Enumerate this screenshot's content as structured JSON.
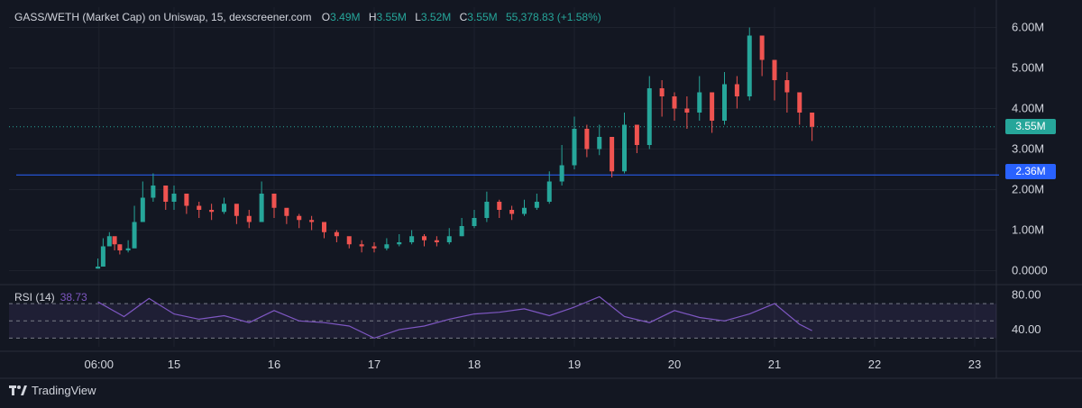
{
  "header": {
    "symbol": "GASS/WETH (Market Cap) on Uniswap, 15, dexscreener.com",
    "o_label": "O",
    "o_value": "3.49M",
    "h_label": "H",
    "h_value": "3.55M",
    "l_label": "L",
    "l_value": "3.52M",
    "c_label": "C",
    "c_value": "3.55M",
    "change": "55,378.83 (+1.58%)"
  },
  "rsi": {
    "label": "RSI (14)",
    "value": "38.73"
  },
  "badges": {
    "last_price": "3.55M",
    "level": "2.36M"
  },
  "brand": {
    "name": "TradingView"
  },
  "colors": {
    "background": "#131722",
    "up": "#26a69a",
    "down": "#ef5350",
    "level_line": "#2962ff",
    "rsi_line": "#7e57c2",
    "rsi_band": "#7e57c2"
  },
  "chart_data": [
    {
      "type": "candlestick",
      "title": "GASS/WETH (Market Cap) on Uniswap, 15, dexscreener.com",
      "x_ticks": [
        "06:00",
        "15",
        "16",
        "17",
        "18",
        "19",
        "20",
        "21",
        "22",
        "23"
      ],
      "y_ticks": [
        "0.0000",
        "1.00M",
        "2.00M",
        "3.00M",
        "4.00M",
        "5.00M",
        "6.00M"
      ],
      "ylim": [
        -300000,
        6500000
      ],
      "grid": true,
      "horizontal_line": 2360000,
      "last_value": 3550000,
      "series": [
        {
          "x": [
            "14 05:45",
            "14 07:00",
            "14 08:30",
            "14 09:45",
            "14 11:00",
            "14 13:00",
            "14 14:30",
            "14 16:30",
            "14 19:00",
            "14 22:00",
            "15 00:00",
            "15 03:00",
            "15 06:00",
            "15 09:00",
            "15 12:00",
            "15 15:00",
            "15 18:00",
            "15 21:00",
            "16 00:00",
            "16 03:00",
            "16 06:00",
            "16 09:00",
            "16 12:00",
            "16 15:00",
            "16 18:00",
            "16 21:00",
            "17 00:00",
            "17 03:00",
            "17 06:00",
            "17 09:00",
            "17 12:00",
            "17 15:00",
            "17 18:00",
            "17 21:00",
            "18 00:00",
            "18 03:00",
            "18 06:00",
            "18 09:00",
            "18 12:00",
            "18 15:00",
            "18 18:00",
            "18 21:00",
            "19 00:00",
            "19 03:00",
            "19 06:00",
            "19 09:00",
            "19 12:00",
            "19 15:00",
            "19 18:00",
            "19 21:00",
            "20 00:00",
            "20 03:00",
            "20 06:00",
            "20 09:00",
            "20 12:00",
            "20 15:00",
            "20 18:00",
            "20 21:00",
            "21 00:00",
            "21 03:00",
            "21 06:00",
            "21 09:00"
          ],
          "close": [
            100000,
            600000,
            850000,
            650000,
            500000,
            550000,
            1200000,
            1800000,
            2100000,
            1700000,
            1900000,
            1600000,
            1500000,
            1450000,
            1650000,
            1350000,
            1200000,
            1900000,
            1550000,
            1350000,
            1250000,
            1200000,
            950000,
            850000,
            650000,
            600000,
            550000,
            650000,
            700000,
            850000,
            750000,
            700000,
            850000,
            1100000,
            1300000,
            1700000,
            1500000,
            1400000,
            1550000,
            1700000,
            2200000,
            2600000,
            3500000,
            3000000,
            3300000,
            2450000,
            3600000,
            3100000,
            4500000,
            4300000,
            4000000,
            3900000,
            4400000,
            3700000,
            4600000,
            4300000,
            5800000,
            5200000,
            4700000,
            4400000,
            3900000,
            3550000
          ],
          "high": [
            300000,
            800000,
            950000,
            800000,
            650000,
            750000,
            1600000,
            2200000,
            2400000,
            2000000,
            2100000,
            1800000,
            1700000,
            1650000,
            1800000,
            1550000,
            1500000,
            2200000,
            1800000,
            1500000,
            1400000,
            1350000,
            1150000,
            1000000,
            800000,
            750000,
            700000,
            800000,
            900000,
            1000000,
            900000,
            850000,
            1050000,
            1300000,
            1500000,
            1950000,
            1750000,
            1600000,
            1750000,
            1900000,
            2450000,
            3100000,
            3800000,
            3600000,
            3600000,
            3000000,
            3900000,
            3500000,
            4800000,
            4700000,
            4400000,
            4300000,
            4800000,
            4200000,
            4900000,
            4800000,
            6000000,
            5600000,
            5100000,
            4900000,
            4400000,
            3600000
          ],
          "low": [
            50000,
            250000,
            600000,
            500000,
            400000,
            450000,
            600000,
            1300000,
            1700000,
            1500000,
            1500000,
            1400000,
            1300000,
            1250000,
            1400000,
            1150000,
            1050000,
            1400000,
            1300000,
            1150000,
            1050000,
            1000000,
            800000,
            700000,
            550000,
            450000,
            450000,
            500000,
            600000,
            650000,
            600000,
            600000,
            650000,
            850000,
            1050000,
            1200000,
            1300000,
            1250000,
            1350000,
            1500000,
            1650000,
            2100000,
            2500000,
            2800000,
            2850000,
            2300000,
            2400000,
            2900000,
            3000000,
            3800000,
            3700000,
            3500000,
            3700000,
            3400000,
            3600000,
            4000000,
            4200000,
            4800000,
            4200000,
            3900000,
            3600000,
            3200000
          ]
        }
      ]
    },
    {
      "type": "line",
      "title": "RSI (14)",
      "y_ticks": [
        "40.00",
        "80.00"
      ],
      "ylim": [
        20,
        90
      ],
      "bands": [
        30,
        50,
        70
      ],
      "series": [
        {
          "name": "RSI (14)",
          "x": [
            "14 05:45",
            "14 12:00",
            "14 18:00",
            "15 00:00",
            "15 06:00",
            "15 12:00",
            "15 18:00",
            "16 00:00",
            "16 06:00",
            "16 12:00",
            "16 18:00",
            "17 00:00",
            "17 06:00",
            "17 12:00",
            "17 18:00",
            "18 00:00",
            "18 06:00",
            "18 12:00",
            "18 18:00",
            "19 00:00",
            "19 06:00",
            "19 12:00",
            "19 18:00",
            "20 00:00",
            "20 06:00",
            "20 12:00",
            "20 18:00",
            "21 00:00",
            "21 06:00",
            "21 09:00"
          ],
          "values": [
            72,
            55,
            76,
            58,
            52,
            56,
            48,
            62,
            50,
            48,
            44,
            30,
            40,
            44,
            52,
            58,
            60,
            64,
            56,
            66,
            78,
            55,
            48,
            62,
            54,
            50,
            58,
            70,
            46,
            38.73
          ]
        }
      ]
    }
  ]
}
